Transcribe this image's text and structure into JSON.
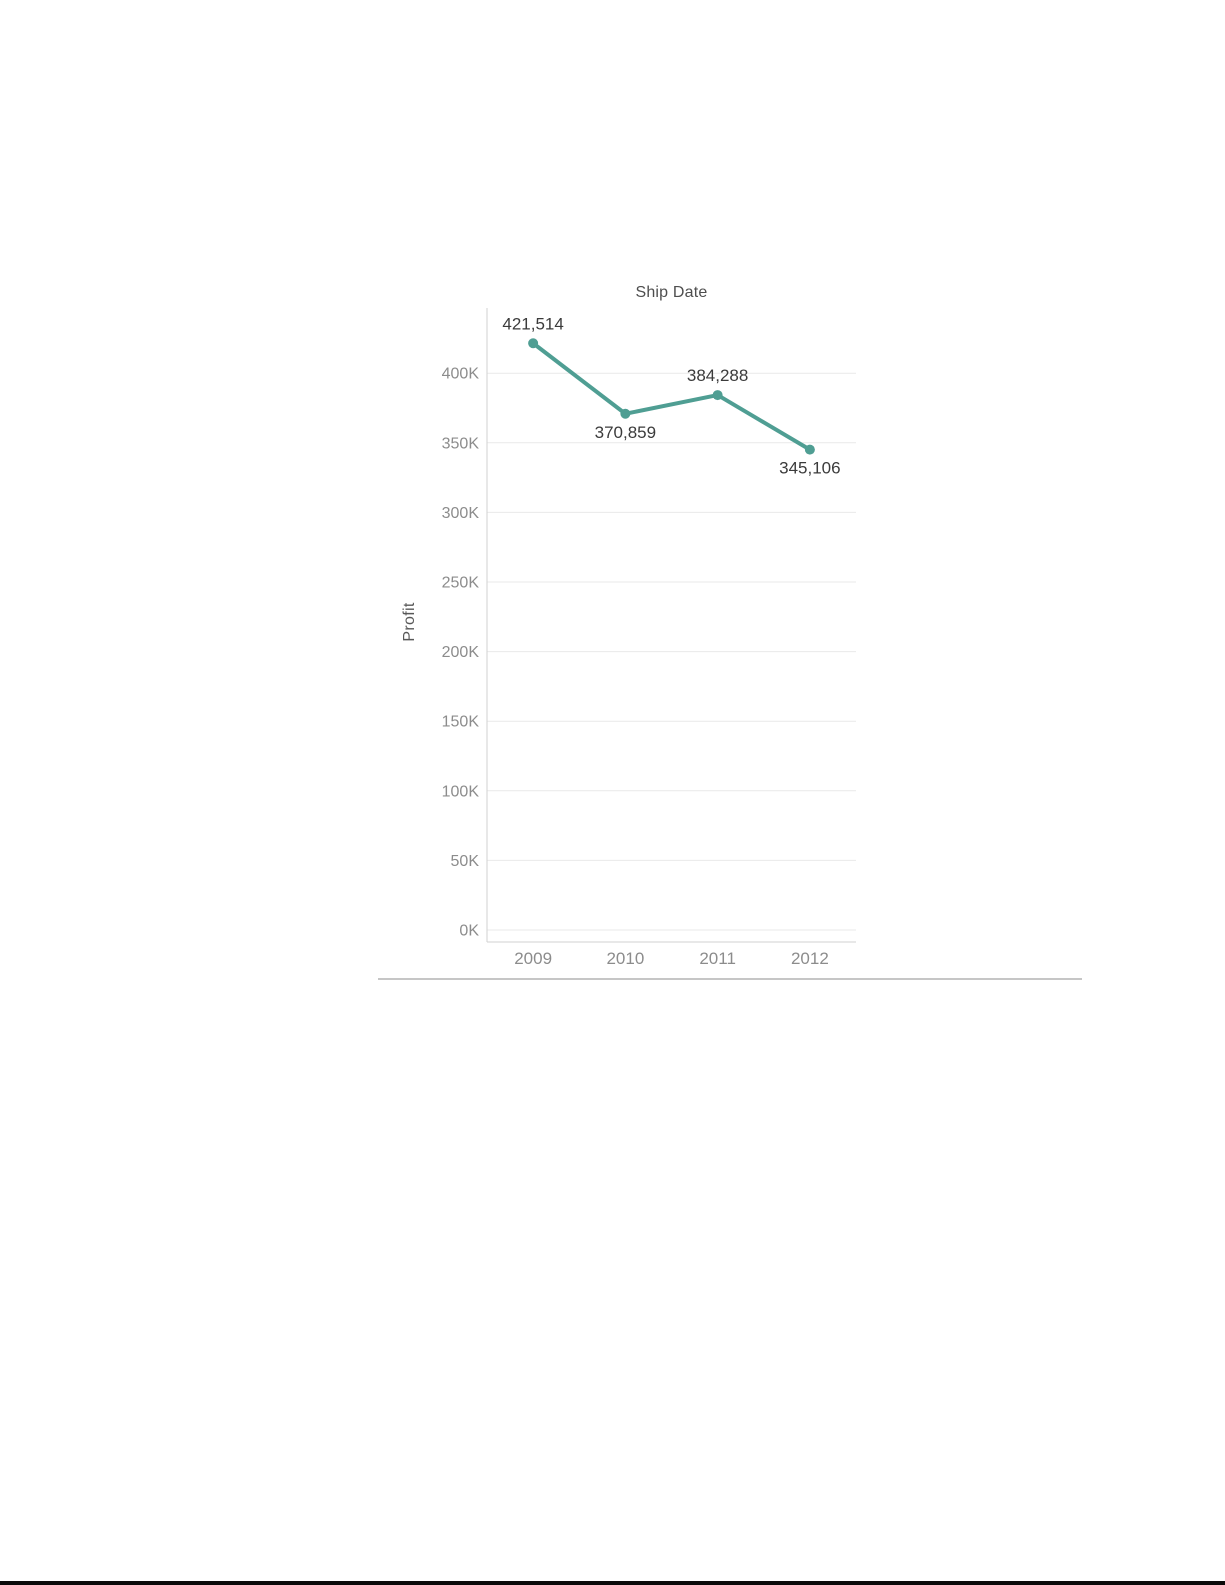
{
  "chart": {
    "title": "Ship Date",
    "y_axis_title": "Profit",
    "line_color": "#4f9e93",
    "grid_color": "#e9e9e9",
    "axis_color": "#d2d2d2",
    "tick_label_color": "#8c8c8c",
    "data_label_color": "#3b3b3b",
    "title_color": "#4e4e4e",
    "y_axis_title_color": "#585858"
  },
  "chart_data": {
    "type": "line",
    "title": "Ship Date",
    "xlabel": "",
    "ylabel": "Profit",
    "categories": [
      "2009",
      "2010",
      "2011",
      "2012"
    ],
    "values": [
      421514,
      370859,
      384288,
      345106
    ],
    "point_labels": [
      "421,514",
      "370,859",
      "384,288",
      "345,106"
    ],
    "label_positions": [
      "above",
      "below",
      "above",
      "below"
    ],
    "ylim": [
      0,
      445000
    ],
    "yticks": {
      "values": [
        0,
        50000,
        100000,
        150000,
        200000,
        250000,
        300000,
        350000,
        400000
      ],
      "labels": [
        "0K",
        "50K",
        "100K",
        "150K",
        "200K",
        "250K",
        "300K",
        "350K",
        "400K"
      ]
    },
    "grid": true,
    "legend": false,
    "markers": true
  }
}
